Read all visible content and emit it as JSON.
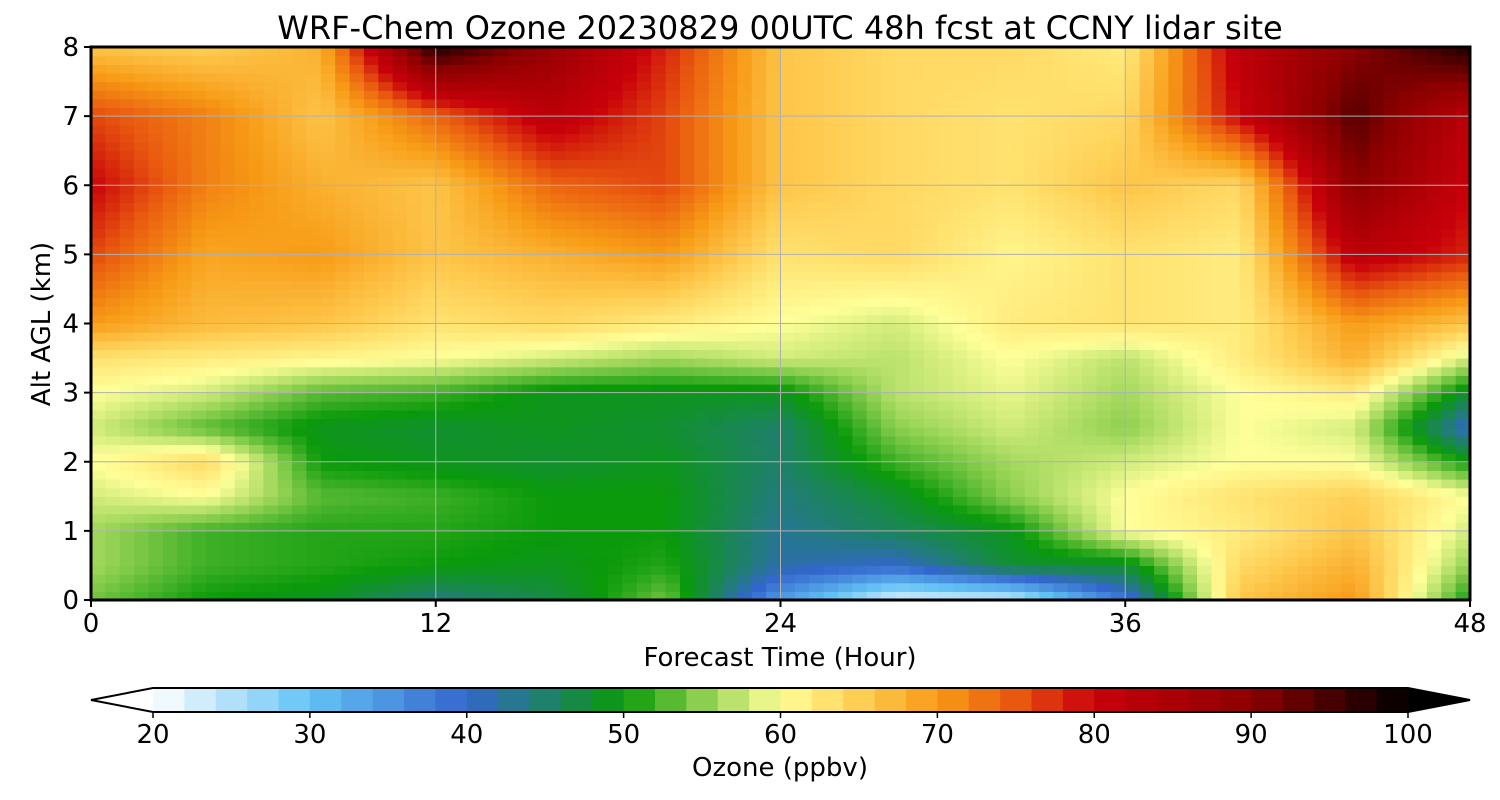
{
  "chart_data": {
    "type": "heatmap",
    "title": "WRF-Chem Ozone  20230829 00UTC 48h fcst at CCNY lidar site",
    "xlabel": "Forecast Time (Hour)",
    "ylabel": "Alt AGL (km)",
    "xlim": [
      0,
      48
    ],
    "ylim": [
      0,
      8
    ],
    "xticks": [
      0,
      12,
      24,
      36,
      48
    ],
    "yticks": [
      0,
      1,
      2,
      3,
      4,
      5,
      6,
      7,
      8
    ],
    "grid": true,
    "x": [
      0,
      4,
      8,
      12,
      16,
      20,
      24,
      28,
      32,
      36,
      40,
      44,
      48
    ],
    "y": [
      0,
      0.5,
      1,
      1.5,
      2,
      2.5,
      3,
      3.5,
      4,
      5,
      6,
      7,
      8
    ],
    "z": [
      [
        54,
        50,
        49,
        44,
        47,
        54,
        34,
        22,
        23,
        38,
        66,
        70,
        50
      ],
      [
        56,
        52,
        51,
        50,
        49,
        51,
        42,
        40,
        48,
        48,
        64,
        68,
        55
      ],
      [
        56,
        52,
        51,
        51,
        50,
        50,
        43,
        46,
        49,
        60,
        62,
        66,
        58
      ],
      [
        58,
        60,
        53,
        52,
        50,
        50,
        44,
        48,
        55,
        60,
        63,
        65,
        60
      ],
      [
        60,
        64,
        50,
        49,
        48,
        49,
        45,
        52,
        56,
        58,
        60,
        60,
        50
      ],
      [
        58,
        53,
        49,
        48,
        49,
        48,
        45,
        55,
        58,
        55,
        60,
        58,
        40
      ],
      [
        60,
        58,
        53,
        52,
        49,
        49,
        49,
        57,
        59,
        56,
        60,
        62,
        48
      ],
      [
        63,
        62,
        61,
        60,
        58,
        56,
        58,
        57,
        60,
        57,
        62,
        68,
        58
      ],
      [
        70,
        67,
        66,
        63,
        64,
        62,
        60,
        58,
        62,
        63,
        62,
        70,
        66
      ],
      [
        76,
        69,
        70,
        66,
        68,
        70,
        63,
        64,
        61,
        63,
        62,
        82,
        78
      ],
      [
        80,
        72,
        68,
        66,
        74,
        76,
        66,
        64,
        63,
        66,
        64,
        90,
        80
      ],
      [
        76,
        72,
        66,
        74,
        82,
        76,
        66,
        64,
        63,
        64,
        80,
        94,
        82
      ],
      [
        66,
        65,
        68,
        98,
        88,
        78,
        66,
        64,
        64,
        62,
        82,
        90,
        98
      ]
    ],
    "colorbar": {
      "label": "Ozone  (ppbv)",
      "min": 20,
      "max": 100,
      "ticks": [
        20,
        30,
        40,
        50,
        60,
        70,
        80,
        90,
        100
      ],
      "extend": "both",
      "colors": [
        {
          "v": 20,
          "c": "#ffffff"
        },
        {
          "v": 30,
          "c": "#63c3f5"
        },
        {
          "v": 40,
          "c": "#3366cc"
        },
        {
          "v": 50,
          "c": "#0a9a0a"
        },
        {
          "v": 55,
          "c": "#8ccf4f"
        },
        {
          "v": 60,
          "c": "#ffff99"
        },
        {
          "v": 65,
          "c": "#ffcf55"
        },
        {
          "v": 70,
          "c": "#f79b16"
        },
        {
          "v": 75,
          "c": "#e9580f"
        },
        {
          "v": 80,
          "c": "#c8000a"
        },
        {
          "v": 90,
          "c": "#8c0000"
        },
        {
          "v": 100,
          "c": "#000000"
        }
      ]
    }
  }
}
